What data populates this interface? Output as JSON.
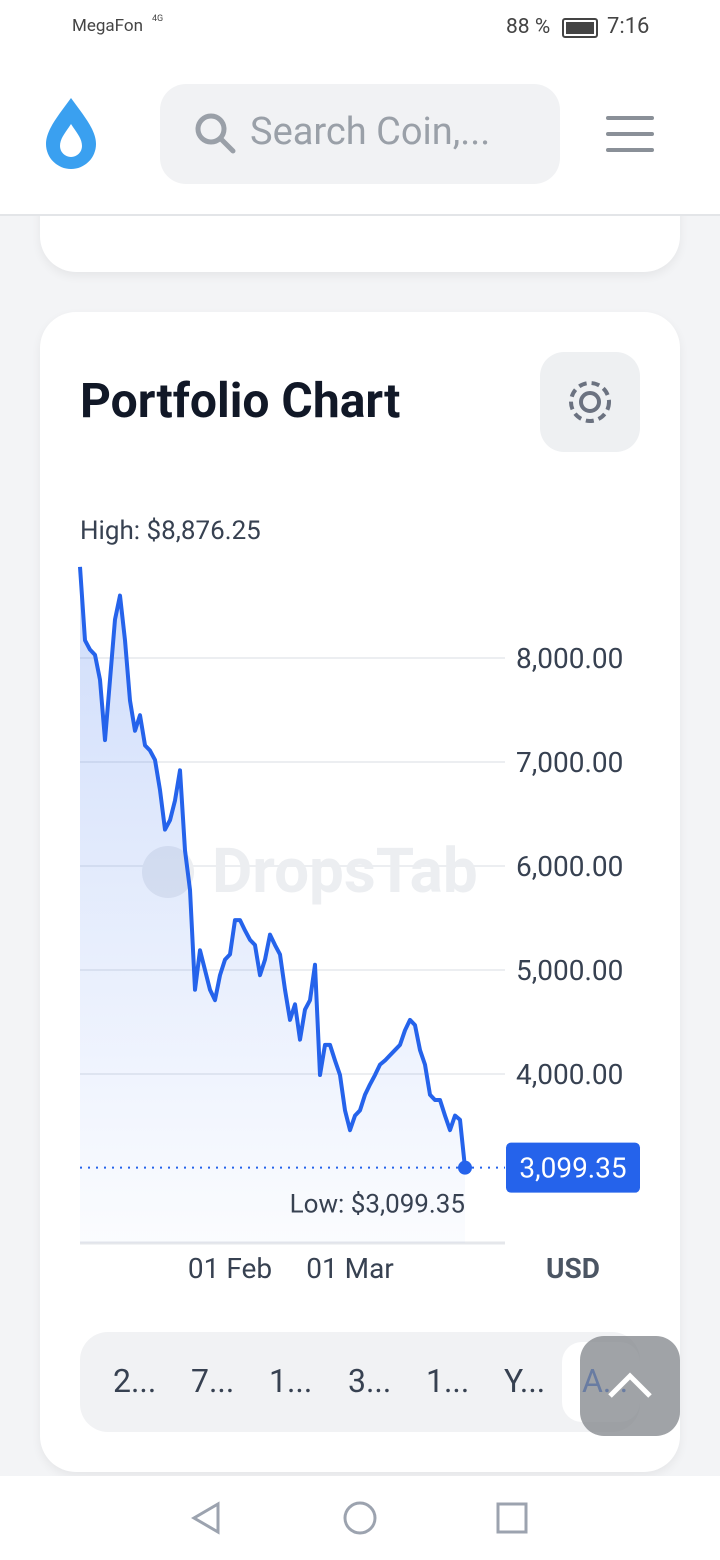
{
  "status_bar": {
    "carrier": "MegaFon",
    "network": "4G",
    "battery": "88 %",
    "time": "7:16"
  },
  "header": {
    "search_placeholder": "Search Coin,..."
  },
  "chart_card": {
    "title": "Portfolio Chart",
    "watermark": "DropsTab",
    "chart_data": {
      "type": "line",
      "color": "#2563eb",
      "high_label": "High: $8,876.25",
      "low_label": "Low: $3,099.35",
      "last_label": "3,099.35",
      "unit": "USD",
      "values": [
        8876.25,
        8170,
        8080,
        8030,
        7790,
        7210,
        7790,
        8370,
        8600,
        8170,
        7590,
        7300,
        7450,
        7160,
        7110,
        7020,
        6730,
        6350,
        6440,
        6630,
        6920,
        6150,
        5770,
        4810,
        5190,
        5000,
        4810,
        4710,
        4950,
        5100,
        5150,
        5480,
        5480,
        5380,
        5290,
        5240,
        4950,
        5100,
        5340,
        5240,
        5150,
        4810,
        4520,
        4670,
        4330,
        4620,
        4710,
        5050,
        3990,
        4280,
        4280,
        4130,
        3990,
        3650,
        3460,
        3600,
        3650,
        3800,
        3900,
        3990,
        4090,
        4130,
        4180,
        4230,
        4280,
        4420,
        4520,
        4470,
        4230,
        4090,
        3800,
        3750,
        3750,
        3600,
        3460,
        3600,
        3560,
        3099.35
      ],
      "xlim": [
        0,
        77
      ],
      "xticks": [
        {
          "value": 30,
          "label": "01 Feb"
        },
        {
          "value": 54,
          "label": "01 Mar"
        }
      ],
      "ylim": [
        2375,
        8894
      ],
      "yticks": [
        {
          "value": 4000,
          "label": "4,000.00"
        },
        {
          "value": 5000,
          "label": "5,000.00"
        },
        {
          "value": 6000,
          "label": "6,000.00"
        },
        {
          "value": 7000,
          "label": "7,000.00"
        },
        {
          "value": 8000,
          "label": "8,000.00"
        }
      ],
      "grid": true
    },
    "ranges": [
      "2...",
      "7...",
      "1...",
      "3...",
      "1...",
      "Y...",
      "A..."
    ]
  }
}
